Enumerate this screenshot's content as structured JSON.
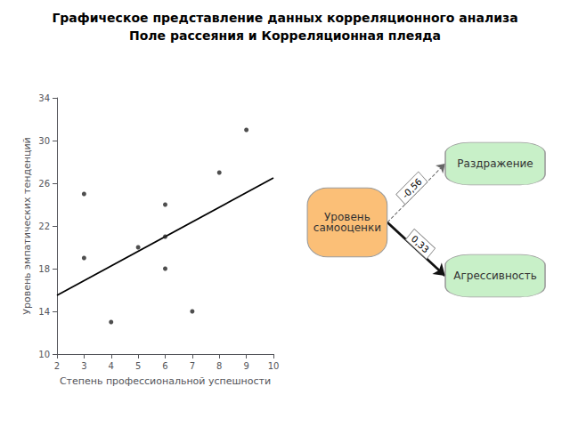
{
  "chart_data": [
    {
      "type": "scatter",
      "title": "Графическое представление данных корреляционного анализа",
      "subtitle": "Поле рассеяния и Корреляционная плеяда",
      "xlabel": "Степень профессиональной успешности",
      "ylabel": "Уровень эмпатических тенденций",
      "series": [
        {
          "type": "scatter",
          "color": "#222222",
          "x": [
            3,
            3,
            4,
            5,
            6,
            6,
            6,
            7,
            8,
            9
          ],
          "values": [
            25,
            19,
            13,
            20,
            21,
            18,
            24,
            14,
            27,
            31
          ]
        },
        {
          "type": "line",
          "color": "#000000",
          "x": [
            2,
            10
          ],
          "values": [
            15.5,
            26.5
          ]
        }
      ],
      "xlim": [
        2,
        10
      ],
      "ylim": [
        10,
        34
      ],
      "xticks": [
        2,
        3,
        4,
        5,
        6,
        7,
        8,
        9,
        10
      ],
      "yticks": [
        10,
        14,
        18,
        22,
        26,
        30,
        34
      ],
      "grid": false
    },
    {
      "type": "graph",
      "nodes": [
        {
          "name": "Уровень\nсамооценки",
          "color": "#FBBF77"
        },
        {
          "name": "Раздражение",
          "color": "#c8f0c8"
        },
        {
          "name": "Агрессивность",
          "color": "#c8f0c8"
        }
      ],
      "links": [
        {
          "source": "Уровень\nсамооценки",
          "target": "Раздражение",
          "value": -0.56,
          "value_label": "-0,56",
          "color": "#666666",
          "line_style": "dashed"
        },
        {
          "source": "Уровень\nсамооценки",
          "target": "Агрессивность",
          "value": 0.33,
          "value_label": "0,33",
          "color": "#111111",
          "line_style": "solid"
        }
      ]
    }
  ]
}
